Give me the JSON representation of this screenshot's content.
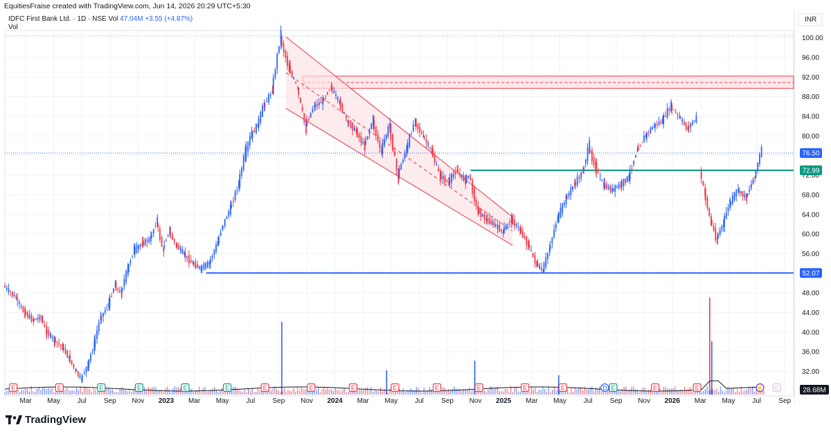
{
  "header": {
    "attribution": "EquitiesFraise created with TradingView.com, Jun 14, 2026 20:29 UTC+5:30"
  },
  "legend": {
    "symbol": "IDFC First Bank Ltd. · 1D · NSE",
    "vol_label": "Vol",
    "vol_value": "47.04M",
    "change": "+3.55 (+4.87%)",
    "vol_row": "Vol"
  },
  "currency": "INR",
  "footer": {
    "brand": "TradingView"
  },
  "colors": {
    "up": "#2962ff",
    "down": "#f23645",
    "channel": "#f23645",
    "channel_fill": "#fce4e6",
    "support": "#2962ff",
    "mid_line": "#089981",
    "grid": "#f0f3fa"
  },
  "chart_data": {
    "type": "candlestick",
    "y_axis": {
      "ylim": [
        27.0,
        101.5
      ],
      "ticks": [
        "100.00",
        "96.00",
        "92.00",
        "88.00",
        "84.00",
        "80.00",
        "76.00",
        "72.00",
        "68.00",
        "64.00",
        "60.00",
        "56.00",
        "52.00",
        "48.00",
        "44.00",
        "40.00",
        "36.00",
        "32.00"
      ],
      "tick_values": [
        100,
        96,
        92,
        88,
        84,
        80,
        76,
        72,
        68,
        64,
        60,
        56,
        52,
        48,
        44,
        40,
        36,
        32
      ]
    },
    "x_axis": {
      "labels": [
        "Mar",
        "May",
        "Jul",
        "Sep",
        "Nov",
        "2023",
        "Mar",
        "May",
        "Jul",
        "Sep",
        "Nov",
        "2024",
        "Mar",
        "May",
        "Jul",
        "Sep",
        "Nov",
        "2025",
        "Mar",
        "May",
        "Jul",
        "Sep",
        "Nov",
        "2026",
        "Mar",
        "May",
        "Jul",
        "Sep"
      ],
      "bold": [
        "2023",
        "2024",
        "2025",
        "2026"
      ]
    },
    "price_path": [
      {
        "t": 0,
        "v": 49.5
      },
      {
        "t": 3,
        "v": 47
      },
      {
        "t": 5,
        "v": 44
      },
      {
        "t": 7,
        "v": 42.5
      },
      {
        "t": 9,
        "v": 43
      },
      {
        "t": 10,
        "v": 40.5
      },
      {
        "t": 12,
        "v": 38.5
      },
      {
        "t": 14,
        "v": 37
      },
      {
        "t": 15.5,
        "v": 35
      },
      {
        "t": 17,
        "v": 32.5
      },
      {
        "t": 18.5,
        "v": 30.5
      },
      {
        "t": 20,
        "v": 33
      },
      {
        "t": 21.5,
        "v": 37
      },
      {
        "t": 23,
        "v": 42.5
      },
      {
        "t": 25,
        "v": 45.5
      },
      {
        "t": 26.5,
        "v": 49.5
      },
      {
        "t": 28,
        "v": 48
      },
      {
        "t": 29.5,
        "v": 52.5
      },
      {
        "t": 31,
        "v": 56.5
      },
      {
        "t": 33,
        "v": 58
      },
      {
        "t": 35,
        "v": 59
      },
      {
        "t": 36.5,
        "v": 62.5
      },
      {
        "t": 38,
        "v": 57
      },
      {
        "t": 39.5,
        "v": 60.5
      },
      {
        "t": 41,
        "v": 58
      },
      {
        "t": 43,
        "v": 56
      },
      {
        "t": 45,
        "v": 54
      },
      {
        "t": 47,
        "v": 53
      },
      {
        "t": 49,
        "v": 54
      },
      {
        "t": 51,
        "v": 58
      },
      {
        "t": 52,
        "v": 61
      },
      {
        "t": 54,
        "v": 65
      },
      {
        "t": 56,
        "v": 70
      },
      {
        "t": 57.5,
        "v": 76
      },
      {
        "t": 59,
        "v": 80
      },
      {
        "t": 60.5,
        "v": 82
      },
      {
        "t": 62,
        "v": 86
      },
      {
        "t": 64,
        "v": 89
      },
      {
        "t": 66,
        "v": 100
      },
      {
        "t": 68,
        "v": 94
      },
      {
        "t": 70,
        "v": 90
      },
      {
        "t": 72,
        "v": 82
      },
      {
        "t": 74,
        "v": 86
      },
      {
        "t": 76,
        "v": 87
      },
      {
        "t": 78,
        "v": 90
      },
      {
        "t": 80,
        "v": 87
      },
      {
        "t": 82,
        "v": 83
      },
      {
        "t": 84,
        "v": 81
      },
      {
        "t": 86,
        "v": 78
      },
      {
        "t": 88,
        "v": 83
      },
      {
        "t": 90,
        "v": 77
      },
      {
        "t": 92,
        "v": 82
      },
      {
        "t": 94,
        "v": 72
      },
      {
        "t": 96,
        "v": 77
      },
      {
        "t": 98,
        "v": 83
      },
      {
        "t": 100,
        "v": 80
      },
      {
        "t": 102,
        "v": 77
      },
      {
        "t": 104,
        "v": 72
      },
      {
        "t": 106,
        "v": 70.5
      },
      {
        "t": 108,
        "v": 73
      },
      {
        "t": 110,
        "v": 71
      },
      {
        "t": 111,
        "v": 72
      },
      {
        "t": 113,
        "v": 65
      },
      {
        "t": 115,
        "v": 63
      },
      {
        "t": 117,
        "v": 62
      },
      {
        "t": 119,
        "v": 60.5
      },
      {
        "t": 121,
        "v": 63
      },
      {
        "t": 123,
        "v": 61
      },
      {
        "t": 125,
        "v": 58
      },
      {
        "t": 127,
        "v": 54
      },
      {
        "t": 128.5,
        "v": 52.5
      },
      {
        "t": 130,
        "v": 56.5
      },
      {
        "t": 132,
        "v": 63
      },
      {
        "t": 134,
        "v": 67
      },
      {
        "t": 136,
        "v": 70
      },
      {
        "t": 138,
        "v": 72.5
      },
      {
        "t": 139.5,
        "v": 77.5
      },
      {
        "t": 141,
        "v": 74
      },
      {
        "t": 143,
        "v": 70
      },
      {
        "t": 145,
        "v": 69
      },
      {
        "t": 147,
        "v": 70
      },
      {
        "t": 149,
        "v": 71.5
      },
      {
        "t": 151,
        "v": 77
      },
      {
        "t": 153,
        "v": 80
      },
      {
        "t": 155,
        "v": 82
      },
      {
        "t": 157,
        "v": 83
      },
      {
        "t": 159,
        "v": 86
      },
      {
        "t": 161,
        "v": 84
      },
      {
        "t": 163,
        "v": 81.5
      },
      {
        "t": 165,
        "v": 83.5
      }
    ],
    "price_path_2": [
      {
        "t": 166,
        "v": 73
      },
      {
        "t": 167,
        "v": 69
      },
      {
        "t": 168.5,
        "v": 63
      },
      {
        "t": 170,
        "v": 59
      },
      {
        "t": 171.5,
        "v": 62
      },
      {
        "t": 173,
        "v": 66
      },
      {
        "t": 175,
        "v": 69
      },
      {
        "t": 177,
        "v": 67.5
      },
      {
        "t": 179,
        "v": 71.5
      },
      {
        "t": 180.5,
        "v": 76.5
      }
    ],
    "time_range": [
      0,
      188
    ],
    "last_price": "76.50",
    "level_labels": [
      {
        "label": "76.50",
        "value": 76.5,
        "color": "#2962ff"
      },
      {
        "label": "72.99",
        "value": 72.99,
        "color": "#089981"
      },
      {
        "label": "52.07",
        "value": 52.07,
        "color": "#2962ff"
      }
    ],
    "volume_label": "28.68M",
    "horizontal_lines": [
      {
        "name": "support",
        "value": 52.07,
        "t_start": 48
      },
      {
        "name": "breakout",
        "value": 72.99,
        "t_start": 111
      }
    ],
    "resistance_zone": {
      "top": 92.2,
      "bottom": 89.7,
      "mid": 90.9,
      "t_start": 71
    },
    "channel": {
      "upper": [
        {
          "t": 67,
          "v": 100.2
        },
        {
          "t": 121,
          "v": 63.5
        }
      ],
      "lower": [
        {
          "t": 67,
          "v": 85.6
        },
        {
          "t": 121,
          "v": 57.7
        }
      ],
      "mid": [
        {
          "t": 67,
          "v": 92.9
        },
        {
          "t": 121,
          "v": 60.6
        }
      ],
      "shade_t_end": 121
    },
    "events": [
      {
        "t": 2,
        "k": "E",
        "c": "#f23645"
      },
      {
        "t": 13,
        "k": "E",
        "c": "#f23645"
      },
      {
        "t": 23,
        "k": "E",
        "c": "#089981"
      },
      {
        "t": 32,
        "k": "E",
        "c": "#089981"
      },
      {
        "t": 43,
        "k": "E",
        "c": "#089981"
      },
      {
        "t": 53,
        "k": "E",
        "c": "#089981"
      },
      {
        "t": 62,
        "k": "E",
        "c": "#f23645"
      },
      {
        "t": 73,
        "k": "E",
        "c": "#f23645"
      },
      {
        "t": 83,
        "k": "E",
        "c": "#f23645"
      },
      {
        "t": 93,
        "k": "E",
        "c": "#f23645"
      },
      {
        "t": 103,
        "k": "E",
        "c": "#f23645"
      },
      {
        "t": 113,
        "k": "E",
        "c": "#f23645"
      },
      {
        "t": 124,
        "k": "E",
        "c": "#f23645"
      },
      {
        "t": 133,
        "k": "E",
        "c": "#f23645"
      },
      {
        "t": 143,
        "k": "D",
        "c": "#2962ff"
      },
      {
        "t": 145,
        "k": "E",
        "c": "#089981"
      },
      {
        "t": 155,
        "k": "E",
        "c": "#f23645"
      },
      {
        "t": 165,
        "k": "E",
        "c": "#f23645"
      },
      {
        "t": 180,
        "k": "⚡",
        "c": "#9c27b0"
      },
      {
        "t": 184,
        "k": "E",
        "c": "#e1bee7"
      }
    ],
    "volume_spikes": [
      {
        "t": 66,
        "v": 0.75
      },
      {
        "t": 112,
        "v": 0.35
      },
      {
        "t": 168,
        "v": 1.0
      },
      {
        "t": 168.5,
        "v": 0.55
      },
      {
        "t": 91,
        "v": 0.25
      },
      {
        "t": 132,
        "v": 0.2
      }
    ],
    "grid": true
  }
}
